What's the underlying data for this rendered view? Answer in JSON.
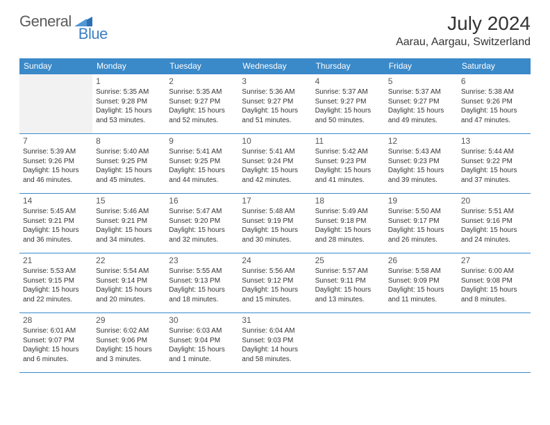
{
  "brand": {
    "part1": "General",
    "part2": "Blue"
  },
  "title": "July 2024",
  "location": "Aarau, Aargau, Switzerland",
  "colors": {
    "header_bg": "#3a89c9",
    "header_text": "#ffffff",
    "border": "#3a89c9",
    "pad_bg": "#f2f2f2",
    "logo_gray": "#5a5a5a",
    "logo_blue": "#3a7fc4"
  },
  "weekdays": [
    "Sunday",
    "Monday",
    "Tuesday",
    "Wednesday",
    "Thursday",
    "Friday",
    "Saturday"
  ],
  "startPad": 1,
  "days": [
    {
      "n": "1",
      "sunrise": "5:35 AM",
      "sunset": "9:28 PM",
      "daylight": "15 hours and 53 minutes."
    },
    {
      "n": "2",
      "sunrise": "5:35 AM",
      "sunset": "9:27 PM",
      "daylight": "15 hours and 52 minutes."
    },
    {
      "n": "3",
      "sunrise": "5:36 AM",
      "sunset": "9:27 PM",
      "daylight": "15 hours and 51 minutes."
    },
    {
      "n": "4",
      "sunrise": "5:37 AM",
      "sunset": "9:27 PM",
      "daylight": "15 hours and 50 minutes."
    },
    {
      "n": "5",
      "sunrise": "5:37 AM",
      "sunset": "9:27 PM",
      "daylight": "15 hours and 49 minutes."
    },
    {
      "n": "6",
      "sunrise": "5:38 AM",
      "sunset": "9:26 PM",
      "daylight": "15 hours and 47 minutes."
    },
    {
      "n": "7",
      "sunrise": "5:39 AM",
      "sunset": "9:26 PM",
      "daylight": "15 hours and 46 minutes."
    },
    {
      "n": "8",
      "sunrise": "5:40 AM",
      "sunset": "9:25 PM",
      "daylight": "15 hours and 45 minutes."
    },
    {
      "n": "9",
      "sunrise": "5:41 AM",
      "sunset": "9:25 PM",
      "daylight": "15 hours and 44 minutes."
    },
    {
      "n": "10",
      "sunrise": "5:41 AM",
      "sunset": "9:24 PM",
      "daylight": "15 hours and 42 minutes."
    },
    {
      "n": "11",
      "sunrise": "5:42 AM",
      "sunset": "9:23 PM",
      "daylight": "15 hours and 41 minutes."
    },
    {
      "n": "12",
      "sunrise": "5:43 AM",
      "sunset": "9:23 PM",
      "daylight": "15 hours and 39 minutes."
    },
    {
      "n": "13",
      "sunrise": "5:44 AM",
      "sunset": "9:22 PM",
      "daylight": "15 hours and 37 minutes."
    },
    {
      "n": "14",
      "sunrise": "5:45 AM",
      "sunset": "9:21 PM",
      "daylight": "15 hours and 36 minutes."
    },
    {
      "n": "15",
      "sunrise": "5:46 AM",
      "sunset": "9:21 PM",
      "daylight": "15 hours and 34 minutes."
    },
    {
      "n": "16",
      "sunrise": "5:47 AM",
      "sunset": "9:20 PM",
      "daylight": "15 hours and 32 minutes."
    },
    {
      "n": "17",
      "sunrise": "5:48 AM",
      "sunset": "9:19 PM",
      "daylight": "15 hours and 30 minutes."
    },
    {
      "n": "18",
      "sunrise": "5:49 AM",
      "sunset": "9:18 PM",
      "daylight": "15 hours and 28 minutes."
    },
    {
      "n": "19",
      "sunrise": "5:50 AM",
      "sunset": "9:17 PM",
      "daylight": "15 hours and 26 minutes."
    },
    {
      "n": "20",
      "sunrise": "5:51 AM",
      "sunset": "9:16 PM",
      "daylight": "15 hours and 24 minutes."
    },
    {
      "n": "21",
      "sunrise": "5:53 AM",
      "sunset": "9:15 PM",
      "daylight": "15 hours and 22 minutes."
    },
    {
      "n": "22",
      "sunrise": "5:54 AM",
      "sunset": "9:14 PM",
      "daylight": "15 hours and 20 minutes."
    },
    {
      "n": "23",
      "sunrise": "5:55 AM",
      "sunset": "9:13 PM",
      "daylight": "15 hours and 18 minutes."
    },
    {
      "n": "24",
      "sunrise": "5:56 AM",
      "sunset": "9:12 PM",
      "daylight": "15 hours and 15 minutes."
    },
    {
      "n": "25",
      "sunrise": "5:57 AM",
      "sunset": "9:11 PM",
      "daylight": "15 hours and 13 minutes."
    },
    {
      "n": "26",
      "sunrise": "5:58 AM",
      "sunset": "9:09 PM",
      "daylight": "15 hours and 11 minutes."
    },
    {
      "n": "27",
      "sunrise": "6:00 AM",
      "sunset": "9:08 PM",
      "daylight": "15 hours and 8 minutes."
    },
    {
      "n": "28",
      "sunrise": "6:01 AM",
      "sunset": "9:07 PM",
      "daylight": "15 hours and 6 minutes."
    },
    {
      "n": "29",
      "sunrise": "6:02 AM",
      "sunset": "9:06 PM",
      "daylight": "15 hours and 3 minutes."
    },
    {
      "n": "30",
      "sunrise": "6:03 AM",
      "sunset": "9:04 PM",
      "daylight": "15 hours and 1 minute."
    },
    {
      "n": "31",
      "sunrise": "6:04 AM",
      "sunset": "9:03 PM",
      "daylight": "14 hours and 58 minutes."
    }
  ],
  "labels": {
    "sunrise": "Sunrise:",
    "sunset": "Sunset:",
    "daylight": "Daylight:"
  }
}
